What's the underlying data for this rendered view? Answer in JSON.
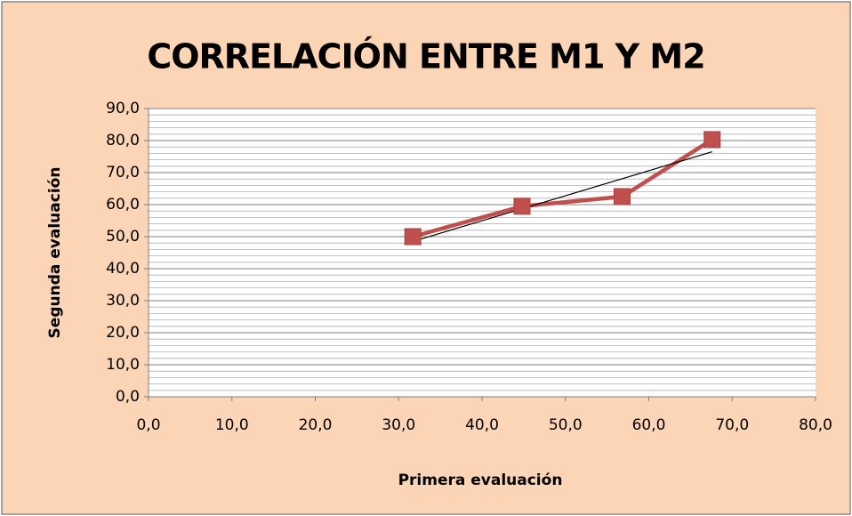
{
  "chart_data": {
    "type": "scatter",
    "title": "CORRELACIÓN ENTRE M1 Y M2",
    "xlabel": "Primera evaluación",
    "ylabel": "Segunda evaluación",
    "series": [
      {
        "color": "#c0504d",
        "x": [
          31.7,
          44.8,
          56.8,
          67.6
        ],
        "values": [
          50.0,
          59.5,
          62.5,
          80.3
        ]
      }
    ],
    "trendline": {
      "color": "#000000",
      "x": [
        31.7,
        67.6
      ],
      "values": [
        48.5,
        76.5
      ]
    },
    "xlim": [
      0,
      80
    ],
    "xticks": [
      {
        "value": 0,
        "label": "0,0"
      },
      {
        "value": 10,
        "label": "10,0"
      },
      {
        "value": 20,
        "label": "20,0"
      },
      {
        "value": 30,
        "label": "30,0"
      },
      {
        "value": 40,
        "label": "40,0"
      },
      {
        "value": 50,
        "label": "50,0"
      },
      {
        "value": 60,
        "label": "60,0"
      },
      {
        "value": 70,
        "label": "70,0"
      },
      {
        "value": 80,
        "label": "80,0"
      }
    ],
    "ylim": [
      0,
      90
    ],
    "yticks": [
      {
        "value": 0,
        "label": "0,0"
      },
      {
        "value": 10,
        "label": "10,0"
      },
      {
        "value": 20,
        "label": "20,0"
      },
      {
        "value": 30,
        "label": "30,0"
      },
      {
        "value": 40,
        "label": "40,0"
      },
      {
        "value": 50,
        "label": "50,0"
      },
      {
        "value": 60,
        "label": "60,0"
      },
      {
        "value": 70,
        "label": "70,0"
      },
      {
        "value": 80,
        "label": "80,0"
      },
      {
        "value": 90,
        "label": "90,0"
      }
    ],
    "grid": true,
    "minor_grid": 2
  }
}
